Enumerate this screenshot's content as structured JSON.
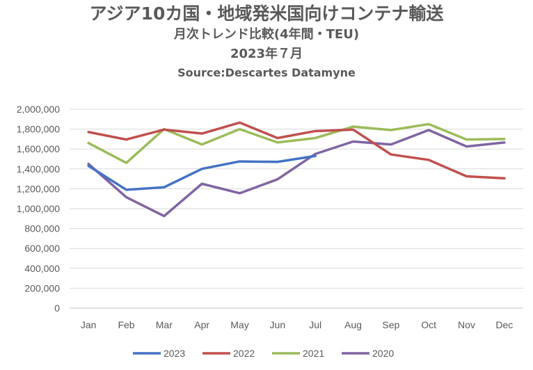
{
  "chart_data": {
    "type": "line",
    "title": "アジア10カ国・地域発米国向けコンテナ輸送",
    "subtitle": "月次トレンド比較(4年間・TEU)",
    "date_label": "2023年７月",
    "source": "Source:Descartes Datamyne",
    "categories": [
      "Jan",
      "Feb",
      "Mar",
      "Apr",
      "May",
      "Jun",
      "Jul",
      "Aug",
      "Sep",
      "Oct",
      "Nov",
      "Dec"
    ],
    "ylim": [
      0,
      2000000
    ],
    "ytick_labels": [
      "0",
      "200,000",
      "400,000",
      "600,000",
      "800,000",
      "1,000,000",
      "1,200,000",
      "1,400,000",
      "1,600,000",
      "1,800,000",
      "2,000,000"
    ],
    "ytick_values": [
      0,
      200000,
      400000,
      600000,
      800000,
      1000000,
      1200000,
      1400000,
      1600000,
      1800000,
      2000000
    ],
    "grid": true,
    "legend_position": "bottom",
    "series": [
      {
        "name": "2023",
        "color": "#4472C4",
        "values": [
          1430000,
          1190000,
          1215000,
          1400000,
          1475000,
          1470000,
          1530000,
          null,
          null,
          null,
          null,
          null
        ]
      },
      {
        "name": "2022",
        "color": "#C0504D",
        "values": [
          1770000,
          1695000,
          1795000,
          1755000,
          1865000,
          1710000,
          1780000,
          1795000,
          1545000,
          1490000,
          1325000,
          1305000
        ]
      },
      {
        "name": "2021",
        "color": "#9BBB59",
        "values": [
          1660000,
          1460000,
          1800000,
          1645000,
          1800000,
          1665000,
          1710000,
          1825000,
          1790000,
          1850000,
          1695000,
          1700000
        ]
      },
      {
        "name": "2020",
        "color": "#8064A2",
        "values": [
          1450000,
          1115000,
          925000,
          1250000,
          1155000,
          1295000,
          1550000,
          1675000,
          1645000,
          1790000,
          1625000,
          1665000
        ]
      }
    ]
  }
}
